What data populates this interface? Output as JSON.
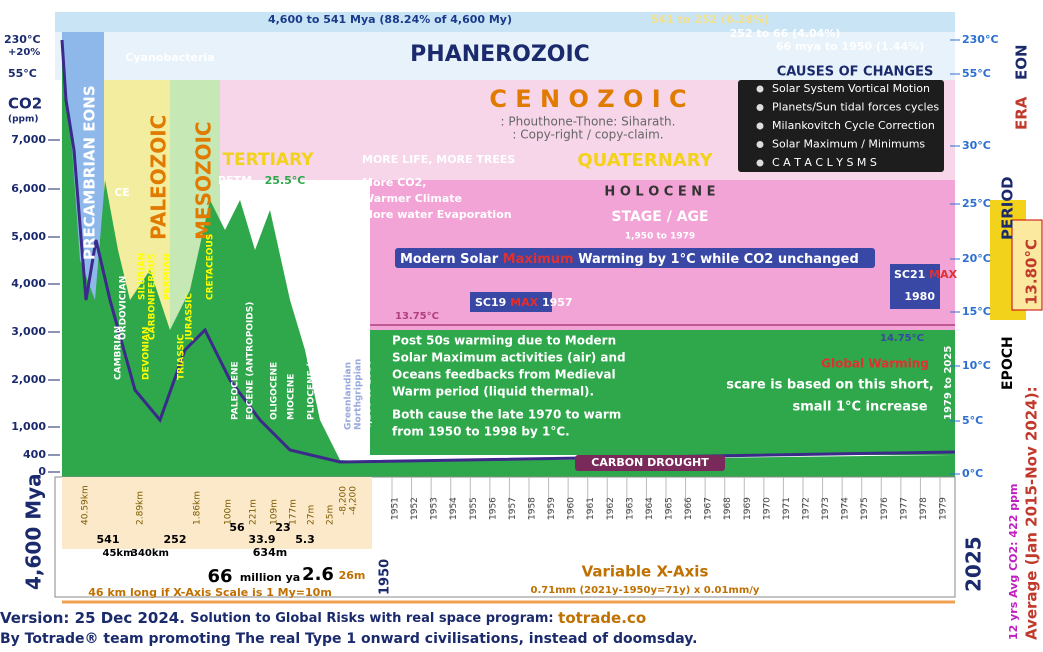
{
  "header": {
    "span_precambrian": "4,600 to 541 Mya (88.24% of 4,600 My)",
    "span_paleozoic": "541 to 252  (6.28%)",
    "span_mesozoic": "252 to 66 (4.04%)",
    "span_cenozoic": "66 mya to 1950 (1.44%)"
  },
  "eons": {
    "precambrian": "PRECAMBRIAN EONS",
    "phanerozoic": "PHANEROZOIC"
  },
  "eras": {
    "paleozoic": "PALEOZOIC",
    "mesozoic": "MESOZOIC",
    "cenozoic": "C E N O Z O I C"
  },
  "labels": {
    "cyanobacteria": "Cyanobacteria",
    "ce": "CE",
    "tertiary": "TERTIARY",
    "petm": "PETM",
    "petm_temp": "25.5°C",
    "mmd": "MMD",
    "more_life": "MORE LIFE, MORE TREES",
    "more_co2": "More CO2,",
    "warmer": "Warmer Climate",
    "evaporation": "More water Evaporation",
    "quaternary": "QUATERNARY",
    "holocene": "H O L O C E N E",
    "stage": "STAGE / AGE",
    "stage_span": "1,950 to 1979",
    "author": ": Phouthone-Thone: Siharath.",
    "copyright": ": Copy-right / copy-claim."
  },
  "causes": {
    "title": "CAUSES OF CHANGES",
    "items": [
      "Solar System Vortical Motion",
      "Planets/Sun tidal forces cycles",
      "Milankovitch Cycle Correction",
      "Solar Maximum / Minimums",
      "C A T A C L Y S M S"
    ]
  },
  "left_axis": {
    "top": "230°C",
    "pct": "+20%",
    "mid": "55°C",
    "title": "CO2",
    "unit": "(ppm)",
    "ticks": [
      "7,000",
      "6,000",
      "5,000",
      "4,000",
      "3,000",
      "2,000",
      "1,000",
      "400",
      "0"
    ]
  },
  "right_axis": {
    "ticks": [
      "230°C",
      "55°C",
      "30°C",
      "25°C",
      "20°C",
      "15°C",
      "10°C",
      "5°C",
      "0°C"
    ],
    "eon": "EON",
    "era": "ERA",
    "period": "PERIOD",
    "epoch": "EPOCH",
    "average_value": "13.80°C",
    "average_label": "Average (Jan 2015-Nov 2024):",
    "co2_avg": "12 yrs Avg CO2: 422 ppm"
  },
  "periods": [
    "CAMBRIAN",
    "ORDOVICIAN",
    "SILURIAN",
    "DEVONIAN",
    "CARBONIFEROUS",
    "PERMIAN",
    "TRIASSIC",
    "JURASSIC",
    "CRETACEOUS",
    "PALEOCENE",
    "EOCENE (ANTROPOIDS)",
    "OLIGOCENE",
    "MIOCENE",
    "PLIOCENE (HOMINIDS)",
    "P L E I S T O C E N E"
  ],
  "annotations": {
    "modern_a": "Modern Solar ",
    "modern_b": "Maximum",
    "modern_c": " Warming by 1°C while CO2 unchanged",
    "sc19": "SC19",
    "sc19_max": "MAX",
    "sc19_year": "1957",
    "sc21": "SC21",
    "sc21_max": "MAX",
    "sc21_year": "1980",
    "t1375": "13.75°C",
    "t1475": "14.75°C",
    "post50s": [
      "Post 50s warming due to Modern",
      "Solar Maximum activities (air) and",
      "Oceans feedbacks from Medieval",
      "Warm period (liquid thermal).",
      "Both cause the late 1970 to warm",
      "from 1950 to 1998 by 1°C."
    ],
    "global_warming": "Global Warming",
    "scare": "scare is based on this short,",
    "small": "small 1°C increase",
    "carbon_drought": "CARBON DROUGHT",
    "recent": "1979 to 2025",
    "greenlandian": "Greenlandian",
    "northgrippian": "Northgrippian",
    "span4200": "4,200 to 1950"
  },
  "x_axis": {
    "durations": [
      "40.59km",
      "2.89km",
      "1.86km",
      "100m",
      "221m",
      "109m",
      "177m",
      "27m",
      "25m",
      "-8,200",
      "-4,200"
    ],
    "start": "4,600 Mya",
    "b541": "541",
    "b252": "252",
    "km45": "45km",
    "km340": "340km",
    "b56": "56",
    "b339": "33.9",
    "b23": "23",
    "b53": "5.3",
    "m634": "634m",
    "b66": "66",
    "mya": "million ya",
    "b26": "2.6",
    "m26": "26m",
    "b1950": "1950",
    "b2025": "2025",
    "variable": "Variable X-Axis",
    "scale": "0.71mm (2021y-1950y=71y) x 0.01mm/y",
    "long": "46 km long if X-Axis Scale is 1 My=10m",
    "years": [
      "1951",
      "1952",
      "1953",
      "1954",
      "1955",
      "1956",
      "1957",
      "1958",
      "1959",
      "1960",
      "1961",
      "1962",
      "1963",
      "1964",
      "1965",
      "1966",
      "1967",
      "1968",
      "1969",
      "1970",
      "1971",
      "1972",
      "1973",
      "1974",
      "1975",
      "1976",
      "1977",
      "1978",
      "1979"
    ]
  },
  "footer": {
    "line1a": "Version: 25 Dec 2024. ",
    "line1b": "Solution to Global Risks with real space program: ",
    "line1c": "totrade.co",
    "line2": "By Totrade® team promoting The real Type 1 onward civilisations, instead of doomsday."
  }
}
